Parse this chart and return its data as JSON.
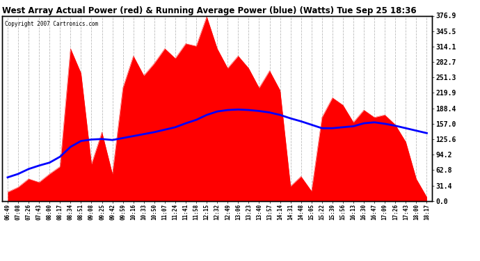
{
  "title": "West Array Actual Power (red) & Running Average Power (blue) (Watts) Tue Sep 25 18:36",
  "copyright": "Copyright 2007 Cartronics.com",
  "ylabel_right_values": [
    376.9,
    345.5,
    314.1,
    282.7,
    251.3,
    219.9,
    188.4,
    157.0,
    125.6,
    94.2,
    62.8,
    31.4,
    0.0
  ],
  "ymax": 376.9,
  "ymin": 0.0,
  "bar_color": "#FF0000",
  "avg_color": "#0000FF",
  "background_color": "#FFFFFF",
  "grid_color": "#BBBBBB",
  "x_labels": [
    "06:49",
    "07:08",
    "07:26",
    "07:43",
    "08:00",
    "08:17",
    "08:34",
    "08:51",
    "09:08",
    "09:25",
    "09:42",
    "09:59",
    "10:16",
    "10:33",
    "10:50",
    "11:07",
    "11:24",
    "11:41",
    "11:58",
    "12:15",
    "12:32",
    "12:49",
    "13:06",
    "13:23",
    "13:40",
    "13:57",
    "14:14",
    "14:31",
    "14:48",
    "15:05",
    "15:22",
    "15:39",
    "15:56",
    "16:13",
    "16:30",
    "16:47",
    "17:09",
    "17:26",
    "17:43",
    "18:00",
    "18:17"
  ],
  "actual_power": [
    18,
    28,
    45,
    38,
    55,
    70,
    310,
    260,
    75,
    140,
    55,
    230,
    295,
    255,
    280,
    310,
    290,
    320,
    315,
    375,
    310,
    270,
    295,
    270,
    230,
    265,
    225,
    30,
    50,
    20,
    170,
    210,
    195,
    160,
    185,
    170,
    175,
    155,
    120,
    45,
    8
  ],
  "running_avg": [
    48,
    55,
    65,
    72,
    78,
    90,
    110,
    122,
    125,
    126,
    124,
    128,
    132,
    136,
    140,
    145,
    150,
    158,
    165,
    175,
    182,
    185,
    186,
    185,
    183,
    180,
    175,
    168,
    162,
    155,
    148,
    148,
    150,
    152,
    158,
    160,
    157,
    153,
    148,
    143,
    138
  ]
}
